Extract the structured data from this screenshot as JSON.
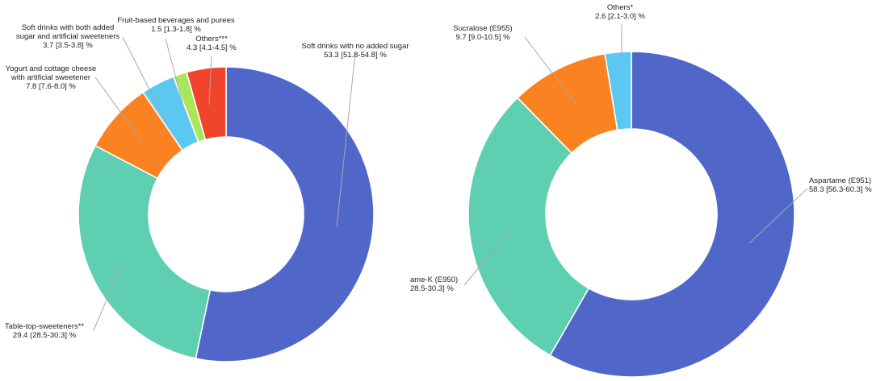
{
  "chart_data": [
    {
      "type": "pie",
      "donut": true,
      "unit": "%",
      "slices": [
        {
          "label": "Soft drinks with no added sugar",
          "value": 53.3,
          "value_text": "53.3 [51.8-54.8] %",
          "color": "#5066c9"
        },
        {
          "label": "Table-top-sweeteners**",
          "value": 29.4,
          "value_text": "29.4 (28.5-30.3] %",
          "color": "#5ecfb0"
        },
        {
          "label": "Yogurt and cottage cheese with artificial sweetener",
          "value": 7.8,
          "value_text": "7.8 [7.6-8.0] %",
          "color": "#fb8221"
        },
        {
          "label": "Soft drinks with both added sugar and artificial sweeteners",
          "value": 3.7,
          "value_text": "3.7 [3.5-3.8] %",
          "color": "#5bc8f2"
        },
        {
          "label": "Fruit-based beverages and purees",
          "value": 1.5,
          "value_text": "1.5 [1.3-1.8] %",
          "color": "#a8e65a"
        },
        {
          "label": "Others***",
          "value": 4.3,
          "value_text": "4.3 [4.1-4.5] %",
          "color": "#f0452a"
        }
      ]
    },
    {
      "type": "pie",
      "donut": true,
      "unit": "%",
      "slices": [
        {
          "label": "Aspartame (E951)",
          "value": 58.3,
          "value_text": "58.3 [56.3-60.3] %",
          "color": "#5066c9"
        },
        {
          "label": "ame-K (E950)",
          "value": 29.4,
          "value_text": "28.5-30.3] %",
          "color": "#5ecfb0"
        },
        {
          "label": "Sucralose (E955)",
          "value": 9.7,
          "value_text": "9.7 [9.0-10.5] %",
          "color": "#fb8221"
        },
        {
          "label": "Others*",
          "value": 2.6,
          "value_text": "2.6 [2.1-3.0] %",
          "color": "#5bc8f2"
        }
      ]
    }
  ]
}
